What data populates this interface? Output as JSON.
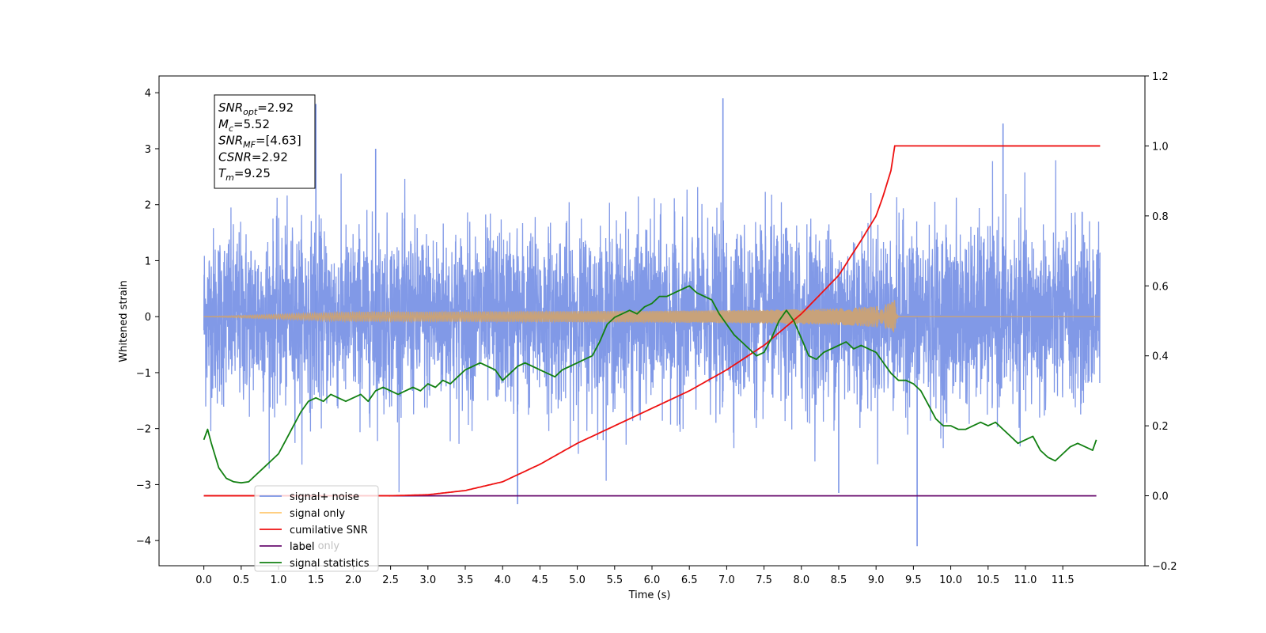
{
  "chart_data": {
    "type": "line",
    "xlabel": "Time (s)",
    "ylabel": "Whitened strain",
    "x_ticks": [
      "0.0",
      "0.5",
      "1.0",
      "1.5",
      "2.0",
      "2.5",
      "3.0",
      "3.5",
      "4.0",
      "4.5",
      "5.0",
      "5.5",
      "6.0",
      "6.5",
      "7.0",
      "7.5",
      "8.0",
      "8.5",
      "9.0",
      "9.5",
      "10.0",
      "10.5",
      "11.0",
      "11.5"
    ],
    "xlim": [
      -0.6,
      12.6
    ],
    "ylim_left": [
      -4.45,
      4.3
    ],
    "left_ticks": [
      "4",
      "3",
      "2",
      "1",
      "0",
      "−1",
      "−2",
      "−3",
      "−4"
    ],
    "ylim_right": [
      -0.2,
      1.2
    ],
    "right_ticks": [
      "1.2",
      "1.0",
      "0.8",
      "0.6",
      "0.4",
      "0.2",
      "0.0",
      "−0.2"
    ],
    "annotation": [
      {
        "base": "SNR",
        "sub": "opt",
        "value": "=2.92"
      },
      {
        "base": "M",
        "sub": "c",
        "value": "=5.52"
      },
      {
        "base": "SNR",
        "sub": "MF",
        "value": "=[4.63]"
      },
      {
        "base": "CSNR",
        "sub": "",
        "value": "=2.92"
      },
      {
        "base": "T",
        "sub": "m",
        "value": "=9.25"
      }
    ],
    "legend_position": "lower-left",
    "legend": [
      {
        "label": "signal+ noise",
        "color": "#7a94e6"
      },
      {
        "label": "signal only",
        "color": "#ffc870"
      },
      {
        "label": "cumilative SNR",
        "color": "#ee1111"
      },
      {
        "label": "label",
        "color": "#6a0f70"
      },
      {
        "label": "signal statistics",
        "color": "#128012"
      }
    ],
    "hidden_legend_text": "label only",
    "series": [
      {
        "name": "signal+ noise",
        "axis": "left",
        "color": "#7a94e6",
        "t_start": 0.0,
        "t_end": 12.0,
        "amplitude_std": 1.0,
        "peak_max": 3.9,
        "peak_min": -4.1
      },
      {
        "name": "signal only",
        "axis": "left",
        "color": "#c8a27a",
        "t_start": 0.0,
        "t_end": 12.0,
        "merger_time": 9.25,
        "peak_amplitude": 0.3
      },
      {
        "name": "cumilative SNR",
        "axis": "right",
        "x": [
          0.0,
          2.5,
          3.0,
          3.5,
          4.0,
          4.5,
          5.0,
          5.5,
          6.0,
          6.5,
          7.0,
          7.5,
          8.0,
          8.5,
          8.8,
          9.0,
          9.1,
          9.2,
          9.25,
          12.0
        ],
        "y": [
          0.0,
          0.0,
          0.003,
          0.015,
          0.04,
          0.09,
          0.15,
          0.2,
          0.25,
          0.3,
          0.36,
          0.43,
          0.52,
          0.63,
          0.73,
          0.8,
          0.86,
          0.93,
          1.0,
          1.0
        ]
      },
      {
        "name": "label",
        "axis": "right",
        "x": [
          0.0,
          11.95
        ],
        "y": [
          0.0,
          0.0
        ]
      },
      {
        "name": "signal statistics",
        "axis": "right",
        "x": [
          0.0,
          0.05,
          0.1,
          0.2,
          0.3,
          0.4,
          0.5,
          0.6,
          0.7,
          0.8,
          0.9,
          1.0,
          1.1,
          1.2,
          1.3,
          1.4,
          1.5,
          1.6,
          1.7,
          1.8,
          1.9,
          2.0,
          2.1,
          2.2,
          2.3,
          2.4,
          2.5,
          2.6,
          2.7,
          2.8,
          2.9,
          3.0,
          3.1,
          3.2,
          3.3,
          3.4,
          3.5,
          3.6,
          3.7,
          3.8,
          3.9,
          4.0,
          4.1,
          4.2,
          4.3,
          4.4,
          4.5,
          4.6,
          4.7,
          4.8,
          4.9,
          5.0,
          5.1,
          5.2,
          5.3,
          5.4,
          5.5,
          5.6,
          5.7,
          5.8,
          5.9,
          6.0,
          6.1,
          6.2,
          6.3,
          6.4,
          6.5,
          6.6,
          6.7,
          6.8,
          6.9,
          7.0,
          7.1,
          7.2,
          7.3,
          7.4,
          7.5,
          7.6,
          7.7,
          7.8,
          7.9,
          8.0,
          8.1,
          8.2,
          8.3,
          8.4,
          8.5,
          8.6,
          8.7,
          8.8,
          8.9,
          9.0,
          9.1,
          9.2,
          9.3,
          9.4,
          9.5,
          9.6,
          9.7,
          9.8,
          9.9,
          10.0,
          10.1,
          10.2,
          10.3,
          10.4,
          10.5,
          10.6,
          10.7,
          10.8,
          10.9,
          11.0,
          11.1,
          11.2,
          11.3,
          11.4,
          11.5,
          11.6,
          11.7,
          11.8,
          11.9,
          11.95
        ],
        "y": [
          0.16,
          0.19,
          0.15,
          0.08,
          0.05,
          0.04,
          0.037,
          0.04,
          0.06,
          0.08,
          0.1,
          0.12,
          0.16,
          0.2,
          0.24,
          0.27,
          0.28,
          0.27,
          0.29,
          0.28,
          0.27,
          0.28,
          0.29,
          0.27,
          0.3,
          0.31,
          0.3,
          0.29,
          0.3,
          0.31,
          0.3,
          0.32,
          0.31,
          0.33,
          0.32,
          0.34,
          0.36,
          0.37,
          0.38,
          0.37,
          0.36,
          0.33,
          0.35,
          0.37,
          0.38,
          0.37,
          0.36,
          0.35,
          0.34,
          0.36,
          0.37,
          0.38,
          0.39,
          0.4,
          0.44,
          0.49,
          0.51,
          0.52,
          0.53,
          0.52,
          0.54,
          0.55,
          0.57,
          0.57,
          0.58,
          0.59,
          0.6,
          0.58,
          0.57,
          0.56,
          0.52,
          0.49,
          0.46,
          0.44,
          0.42,
          0.4,
          0.41,
          0.45,
          0.5,
          0.53,
          0.5,
          0.45,
          0.4,
          0.39,
          0.41,
          0.42,
          0.43,
          0.44,
          0.42,
          0.43,
          0.42,
          0.41,
          0.38,
          0.35,
          0.33,
          0.33,
          0.32,
          0.3,
          0.26,
          0.22,
          0.2,
          0.2,
          0.19,
          0.19,
          0.2,
          0.21,
          0.2,
          0.21,
          0.19,
          0.17,
          0.15,
          0.16,
          0.17,
          0.13,
          0.11,
          0.1,
          0.12,
          0.14,
          0.15,
          0.14,
          0.13,
          0.16
        ]
      }
    ]
  }
}
